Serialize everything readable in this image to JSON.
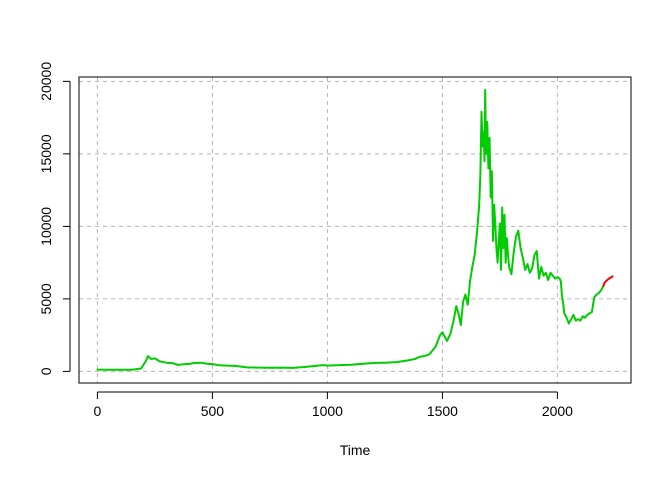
{
  "chart_data": {
    "type": "line",
    "title": "",
    "xlabel": "Time",
    "ylabel": "",
    "xlim": [
      -80,
      2320
    ],
    "ylim": [
      -800,
      20300
    ],
    "x_ticks": [
      0,
      500,
      1000,
      1500,
      2000
    ],
    "y_ticks": [
      0,
      5000,
      10000,
      15000,
      20000
    ],
    "x_tick_labels": [
      "0",
      "500",
      "1000",
      "1500",
      "2000"
    ],
    "y_tick_labels": [
      "0",
      "5000",
      "10000",
      "15000",
      "20000"
    ],
    "grid": true,
    "grid_style": "dashed",
    "series": [
      {
        "color": "#00cd00",
        "role": "observed",
        "points": [
          [
            0,
            120
          ],
          [
            50,
            110
          ],
          [
            100,
            110
          ],
          [
            150,
            115
          ],
          [
            190,
            200
          ],
          [
            210,
            700
          ],
          [
            220,
            1050
          ],
          [
            235,
            850
          ],
          [
            250,
            900
          ],
          [
            270,
            700
          ],
          [
            300,
            600
          ],
          [
            330,
            560
          ],
          [
            350,
            450
          ],
          [
            380,
            500
          ],
          [
            400,
            520
          ],
          [
            420,
            580
          ],
          [
            450,
            600
          ],
          [
            480,
            520
          ],
          [
            500,
            500
          ],
          [
            530,
            420
          ],
          [
            560,
            400
          ],
          [
            600,
            380
          ],
          [
            650,
            280
          ],
          [
            700,
            260
          ],
          [
            750,
            250
          ],
          [
            800,
            260
          ],
          [
            850,
            240
          ],
          [
            900,
            300
          ],
          [
            950,
            380
          ],
          [
            980,
            430
          ],
          [
            1000,
            400
          ],
          [
            1050,
            430
          ],
          [
            1100,
            460
          ],
          [
            1150,
            520
          ],
          [
            1200,
            580
          ],
          [
            1250,
            600
          ],
          [
            1300,
            640
          ],
          [
            1350,
            760
          ],
          [
            1380,
            850
          ],
          [
            1400,
            1000
          ],
          [
            1420,
            1050
          ],
          [
            1440,
            1150
          ],
          [
            1450,
            1300
          ],
          [
            1470,
            1700
          ],
          [
            1490,
            2500
          ],
          [
            1500,
            2700
          ],
          [
            1510,
            2400
          ],
          [
            1520,
            2100
          ],
          [
            1535,
            2600
          ],
          [
            1550,
            3600
          ],
          [
            1560,
            4500
          ],
          [
            1570,
            4000
          ],
          [
            1580,
            3200
          ],
          [
            1590,
            4800
          ],
          [
            1600,
            5300
          ],
          [
            1610,
            4600
          ],
          [
            1620,
            6200
          ],
          [
            1630,
            7200
          ],
          [
            1640,
            8000
          ],
          [
            1650,
            9500
          ],
          [
            1660,
            11500
          ],
          [
            1665,
            13500
          ],
          [
            1670,
            17900
          ],
          [
            1675,
            15500
          ],
          [
            1680,
            16500
          ],
          [
            1683,
            14500
          ],
          [
            1686,
            19400
          ],
          [
            1690,
            15000
          ],
          [
            1695,
            17200
          ],
          [
            1700,
            14000
          ],
          [
            1705,
            16100
          ],
          [
            1710,
            12000
          ],
          [
            1715,
            13800
          ],
          [
            1720,
            9000
          ],
          [
            1725,
            11500
          ],
          [
            1730,
            10100
          ],
          [
            1735,
            8500
          ],
          [
            1740,
            7500
          ],
          [
            1745,
            9000
          ],
          [
            1750,
            10200
          ],
          [
            1755,
            7000
          ],
          [
            1760,
            11300
          ],
          [
            1765,
            8500
          ],
          [
            1770,
            10800
          ],
          [
            1775,
            7500
          ],
          [
            1780,
            9200
          ],
          [
            1785,
            8100
          ],
          [
            1790,
            7200
          ],
          [
            1800,
            6700
          ],
          [
            1810,
            8200
          ],
          [
            1820,
            9300
          ],
          [
            1830,
            9700
          ],
          [
            1840,
            8500
          ],
          [
            1850,
            7800
          ],
          [
            1860,
            7000
          ],
          [
            1870,
            7400
          ],
          [
            1880,
            6800
          ],
          [
            1890,
            7100
          ],
          [
            1900,
            8000
          ],
          [
            1910,
            8300
          ],
          [
            1920,
            6400
          ],
          [
            1930,
            7200
          ],
          [
            1940,
            6600
          ],
          [
            1950,
            6800
          ],
          [
            1960,
            6300
          ],
          [
            1970,
            6800
          ],
          [
            1980,
            6600
          ],
          [
            1990,
            6400
          ],
          [
            2000,
            6500
          ],
          [
            2010,
            6400
          ],
          [
            2015,
            6200
          ],
          [
            2020,
            5200
          ],
          [
            2025,
            4700
          ],
          [
            2030,
            4000
          ],
          [
            2040,
            3700
          ],
          [
            2050,
            3300
          ],
          [
            2060,
            3600
          ],
          [
            2070,
            3900
          ],
          [
            2080,
            3500
          ],
          [
            2090,
            3600
          ],
          [
            2100,
            3500
          ],
          [
            2110,
            3800
          ],
          [
            2120,
            3700
          ],
          [
            2130,
            3900
          ],
          [
            2140,
            4000
          ],
          [
            2150,
            4100
          ],
          [
            2160,
            5100
          ],
          [
            2170,
            5300
          ],
          [
            2180,
            5400
          ],
          [
            2190,
            5600
          ],
          [
            2200,
            5900
          ]
        ]
      },
      {
        "color": "#ff0000",
        "role": "forecast",
        "points": [
          [
            2200,
            5900
          ],
          [
            2205,
            6100
          ],
          [
            2210,
            6200
          ],
          [
            2220,
            6350
          ],
          [
            2230,
            6450
          ],
          [
            2240,
            6550
          ]
        ]
      }
    ]
  }
}
